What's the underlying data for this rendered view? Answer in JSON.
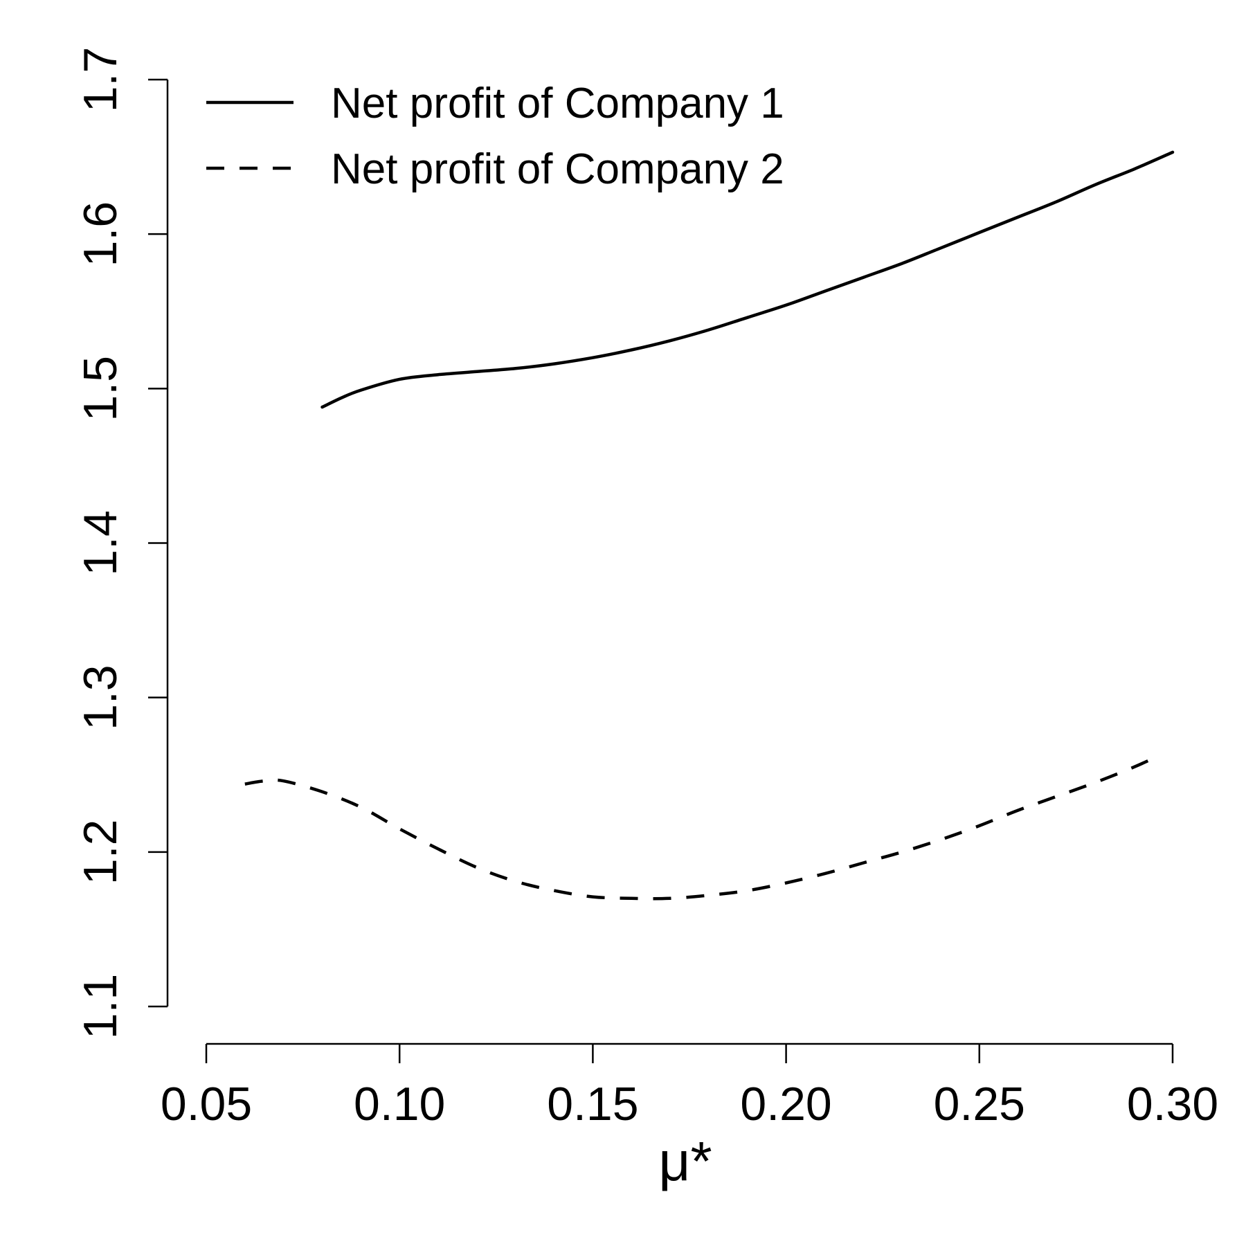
{
  "chart_data": {
    "type": "line",
    "title": "",
    "xlabel": "μ*",
    "ylabel": "",
    "xlim": [
      0.05,
      0.3
    ],
    "ylim": [
      1.1,
      1.7
    ],
    "xticks": [
      "0.05",
      "0.10",
      "0.15",
      "0.20",
      "0.25",
      "0.30"
    ],
    "yticks": [
      "1.1",
      "1.2",
      "1.3",
      "1.4",
      "1.5",
      "1.6",
      "1.7"
    ],
    "grid": false,
    "legend_position": "top-left",
    "series": [
      {
        "name": "Net profit of Company 1",
        "line_style": "solid",
        "color": "#000000",
        "x": [
          0.08,
          0.085,
          0.09,
          0.1,
          0.11,
          0.12,
          0.13,
          0.14,
          0.15,
          0.16,
          0.17,
          0.18,
          0.19,
          0.2,
          0.21,
          0.22,
          0.23,
          0.24,
          0.25,
          0.26,
          0.27,
          0.28,
          0.29,
          0.3
        ],
        "y": [
          1.488,
          1.494,
          1.499,
          1.506,
          1.509,
          1.511,
          1.513,
          1.516,
          1.52,
          1.525,
          1.531,
          1.538,
          1.546,
          1.554,
          1.563,
          1.572,
          1.581,
          1.591,
          1.601,
          1.611,
          1.621,
          1.632,
          1.642,
          1.653
        ]
      },
      {
        "name": "Net profit of Company 2",
        "line_style": "dashed",
        "color": "#000000",
        "x": [
          0.06,
          0.065,
          0.07,
          0.08,
          0.09,
          0.1,
          0.11,
          0.12,
          0.13,
          0.14,
          0.15,
          0.16,
          0.17,
          0.18,
          0.19,
          0.2,
          0.21,
          0.22,
          0.23,
          0.24,
          0.25,
          0.26,
          0.27,
          0.28,
          0.29,
          0.297
        ],
        "y": [
          1.244,
          1.246,
          1.246,
          1.239,
          1.229,
          1.215,
          1.202,
          1.19,
          1.181,
          1.175,
          1.171,
          1.17,
          1.17,
          1.172,
          1.175,
          1.18,
          1.186,
          1.193,
          1.2,
          1.208,
          1.217,
          1.227,
          1.236,
          1.245,
          1.255,
          1.263
        ]
      }
    ]
  }
}
